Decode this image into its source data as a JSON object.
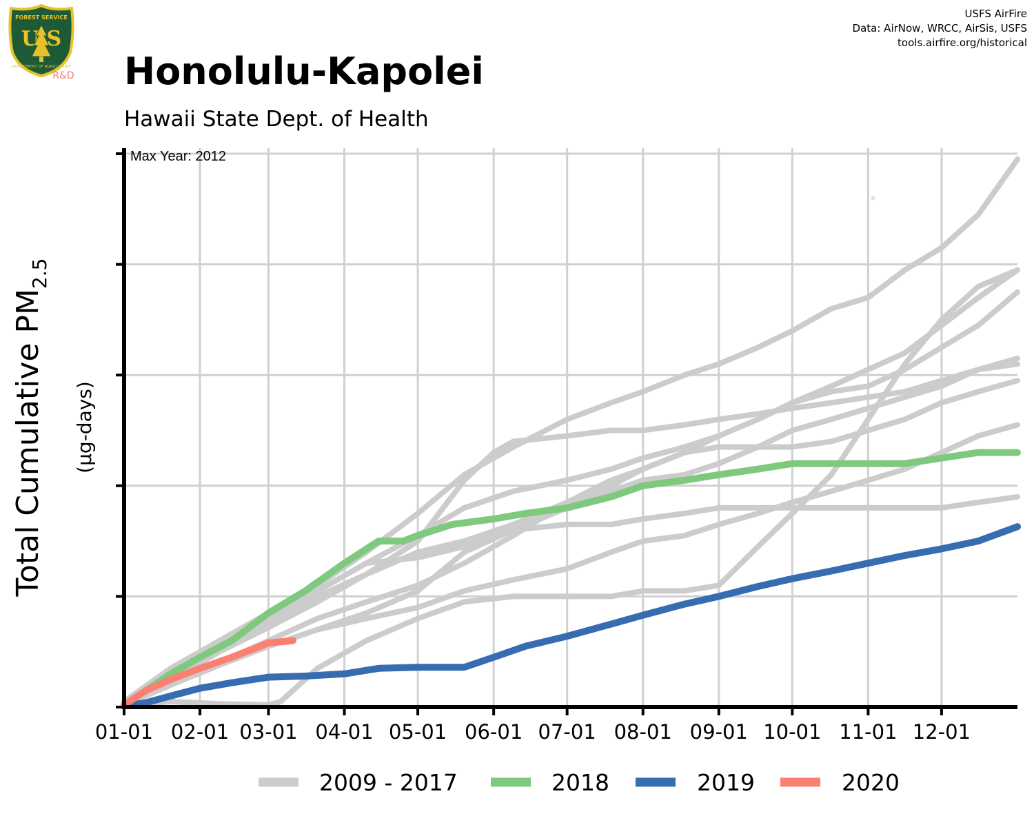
{
  "header": {
    "title": "Honolulu-Kapolei",
    "subtitle": "Hawaii State Dept. of Health",
    "credits": [
      "USFS AirFire",
      "Data: AirNow, WRCC, AirSis, USFS",
      "tools.airfire.org/historical"
    ],
    "logo": {
      "icon": "usfs-shield-icon",
      "text_top": "FOREST SERVICE",
      "text_main": "U S",
      "text_bottom": "DEPARTMENT OF AGRICULTURE",
      "rd_label": "R&D",
      "colors": {
        "shield": "#1f5a37",
        "gold": "#e8c22a",
        "rd": "#f08070"
      }
    }
  },
  "chart_data": {
    "type": "line",
    "title": "Honolulu-Kapolei",
    "subtitle": "Hawaii State Dept. of Health",
    "annotation": "Max Year: 2012",
    "ylabel_main": "Total Cumulative PM",
    "ylabel_sub": "2.5",
    "ylabel_units": "(µg-days)",
    "x_ticks": [
      "01-01",
      "02-01",
      "03-01",
      "04-01",
      "05-01",
      "06-01",
      "07-01",
      "08-01",
      "09-01",
      "10-01",
      "11-01",
      "12-01"
    ],
    "x_tick_days": [
      1,
      32,
      60,
      91,
      121,
      152,
      182,
      213,
      244,
      274,
      305,
      335
    ],
    "xlim": [
      1,
      366
    ],
    "y_ticks": [
      0,
      1,
      2,
      3,
      4,
      5
    ],
    "ylim": [
      0,
      5.05
    ],
    "y_tick_labels_shown": false,
    "grid": true,
    "legend_position": "bottom",
    "legend": [
      {
        "label": "2009 - 2017",
        "color": "#cccccc"
      },
      {
        "label": "2018",
        "color": "#7fc97f"
      },
      {
        "label": "2019",
        "color": "#386cb0"
      },
      {
        "label": "2020",
        "color": "#fb8072"
      }
    ],
    "background_series": [
      {
        "x": [
          1,
          20,
          40,
          60,
          80,
          100,
          121,
          140,
          160,
          182,
          200,
          213,
          230,
          244,
          260,
          274,
          290,
          305,
          320,
          335,
          350,
          366
        ],
        "y": [
          0.05,
          0.35,
          0.6,
          0.85,
          1.1,
          1.4,
          1.75,
          2.1,
          2.35,
          2.6,
          2.75,
          2.85,
          3.0,
          3.1,
          3.25,
          3.4,
          3.6,
          3.7,
          3.95,
          4.15,
          4.45,
          4.95
        ]
      },
      {
        "x": [
          1,
          20,
          40,
          60,
          80,
          100,
          121,
          140,
          160,
          182,
          200,
          213,
          230,
          244,
          260,
          274,
          290,
          305,
          320,
          335,
          350,
          366
        ],
        "y": [
          0.03,
          0.3,
          0.55,
          0.8,
          1.05,
          1.3,
          1.55,
          1.8,
          1.95,
          2.05,
          2.15,
          2.25,
          2.35,
          2.45,
          2.6,
          2.75,
          2.9,
          3.05,
          3.2,
          3.45,
          3.7,
          3.95
        ]
      },
      {
        "x": [
          1,
          20,
          40,
          60,
          80,
          100,
          121,
          140,
          160,
          182,
          200,
          213,
          230,
          244,
          260,
          274,
          290,
          305,
          320,
          335,
          350,
          366
        ],
        "y": [
          0.03,
          0.28,
          0.55,
          0.75,
          1.0,
          1.2,
          1.4,
          1.5,
          1.65,
          1.85,
          2.0,
          2.15,
          2.3,
          2.45,
          2.6,
          2.75,
          2.85,
          2.9,
          3.05,
          3.25,
          3.45,
          3.75
        ]
      },
      {
        "x": [
          1,
          20,
          40,
          60,
          80,
          100,
          121,
          140,
          160,
          182,
          200,
          213,
          230,
          244,
          260,
          274,
          290,
          305,
          320,
          335,
          350,
          366
        ],
        "y": [
          0.03,
          0.3,
          0.55,
          0.8,
          1.05,
          1.3,
          1.35,
          1.45,
          1.6,
          1.8,
          1.95,
          2.05,
          2.1,
          2.2,
          2.35,
          2.5,
          2.6,
          2.7,
          2.8,
          2.9,
          3.05,
          3.15
        ]
      },
      {
        "x": [
          1,
          20,
          40,
          60,
          80,
          100,
          121,
          140,
          152,
          160,
          182,
          200,
          213,
          230,
          244,
          260,
          274,
          290,
          305,
          320,
          335,
          350,
          366
        ],
        "y": [
          0.02,
          0.25,
          0.5,
          0.72,
          0.95,
          1.2,
          1.5,
          2.05,
          2.3,
          2.4,
          2.45,
          2.5,
          2.5,
          2.55,
          2.6,
          2.65,
          2.7,
          2.75,
          2.8,
          2.85,
          2.95,
          3.05,
          3.1
        ]
      },
      {
        "x": [
          1,
          20,
          40,
          60,
          80,
          100,
          121,
          140,
          160,
          182,
          200,
          213,
          230,
          244,
          260,
          274,
          290,
          305,
          320,
          335,
          350,
          366
        ],
        "y": [
          0.02,
          0.22,
          0.4,
          0.6,
          0.8,
          0.95,
          1.1,
          1.3,
          1.55,
          1.85,
          2.05,
          2.15,
          2.3,
          2.35,
          2.35,
          2.35,
          2.4,
          2.5,
          2.6,
          2.75,
          2.85,
          2.95
        ]
      },
      {
        "x": [
          1,
          20,
          40,
          60,
          80,
          100,
          121,
          140,
          160,
          182,
          200,
          213,
          230,
          244,
          260,
          274,
          290,
          305,
          320,
          335,
          350,
          366
        ],
        "y": [
          0.02,
          0.2,
          0.38,
          0.55,
          0.7,
          0.8,
          0.9,
          1.05,
          1.15,
          1.25,
          1.4,
          1.5,
          1.55,
          1.65,
          1.75,
          1.85,
          1.95,
          2.05,
          2.15,
          2.3,
          2.45,
          2.55
        ]
      },
      {
        "x": [
          1,
          20,
          40,
          60,
          80,
          100,
          121,
          140,
          160,
          182,
          200,
          213,
          230,
          244,
          260,
          274,
          290,
          305,
          320,
          335,
          350,
          366
        ],
        "y": [
          0.02,
          0.2,
          0.4,
          0.55,
          0.7,
          0.85,
          1.05,
          1.4,
          1.6,
          1.65,
          1.65,
          1.7,
          1.75,
          1.8,
          1.8,
          1.8,
          1.8,
          1.8,
          1.8,
          1.8,
          1.85,
          1.9
        ]
      },
      {
        "x": [
          1,
          20,
          40,
          60,
          65,
          80,
          100,
          121,
          140,
          160,
          182,
          200,
          213,
          230,
          244,
          260,
          274,
          290,
          305,
          320,
          335,
          350,
          366
        ],
        "y": [
          0.02,
          0.05,
          0.03,
          0.02,
          0.05,
          0.35,
          0.6,
          0.8,
          0.95,
          1.0,
          1.0,
          1.0,
          1.05,
          1.05,
          1.1,
          1.45,
          1.75,
          2.1,
          2.6,
          3.1,
          3.5,
          3.8,
          3.95
        ]
      }
    ],
    "series": [
      {
        "name": "2018",
        "color": "#7fc97f",
        "x": [
          1,
          10,
          20,
          32,
          45,
          60,
          75,
          91,
          105,
          115,
          121,
          135,
          152,
          165,
          182,
          200,
          213,
          230,
          244,
          260,
          274,
          290,
          305,
          320,
          335,
          350,
          366
        ],
        "y": [
          0.02,
          0.15,
          0.3,
          0.45,
          0.6,
          0.85,
          1.05,
          1.3,
          1.5,
          1.5,
          1.55,
          1.65,
          1.7,
          1.75,
          1.8,
          1.9,
          2.0,
          2.05,
          2.1,
          2.15,
          2.2,
          2.2,
          2.2,
          2.2,
          2.25,
          2.3,
          2.3
        ]
      },
      {
        "name": "2019",
        "color": "#386cb0",
        "x": [
          1,
          10,
          20,
          32,
          45,
          60,
          75,
          91,
          105,
          121,
          140,
          152,
          165,
          182,
          200,
          213,
          230,
          244,
          260,
          274,
          290,
          305,
          320,
          335,
          350,
          366
        ],
        "y": [
          0.01,
          0.04,
          0.1,
          0.17,
          0.22,
          0.27,
          0.28,
          0.3,
          0.35,
          0.36,
          0.36,
          0.45,
          0.55,
          0.64,
          0.75,
          0.83,
          0.93,
          1.0,
          1.09,
          1.16,
          1.23,
          1.3,
          1.37,
          1.43,
          1.5,
          1.63
        ]
      },
      {
        "name": "2020",
        "color": "#fb8072",
        "x": [
          1,
          10,
          20,
          32,
          45,
          60,
          70
        ],
        "y": [
          0.02,
          0.15,
          0.25,
          0.35,
          0.45,
          0.58,
          0.6
        ]
      }
    ],
    "outlier_point": {
      "x": 307,
      "y": 4.6
    }
  }
}
